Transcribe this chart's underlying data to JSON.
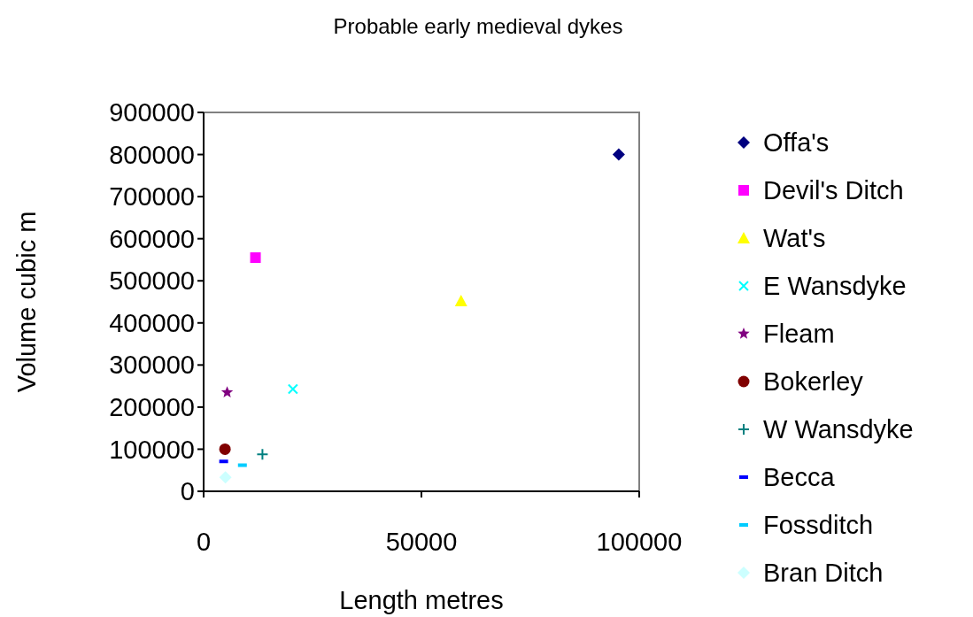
{
  "chart_data": {
    "type": "scatter",
    "title": "Probable early medieval dykes",
    "xlabel": "Length metres",
    "ylabel": "Volume cubic m",
    "xlim": [
      0,
      100000
    ],
    "xticks": [
      0,
      50000,
      100000
    ],
    "ylim": [
      0,
      900000
    ],
    "yticks": [
      0,
      100000,
      200000,
      300000,
      400000,
      500000,
      600000,
      700000,
      800000,
      900000
    ],
    "grid": false,
    "legend": "right",
    "series": [
      {
        "name": "Offa's",
        "color": "#000080",
        "marker": "diamond",
        "x": [
          95300
        ],
        "values": [
          800000
        ]
      },
      {
        "name": "Devil's Ditch",
        "color": "#ff00ff",
        "marker": "square",
        "x": [
          11900
        ],
        "values": [
          555000
        ]
      },
      {
        "name": "Wat's",
        "color": "#ffff00",
        "marker": "triangle",
        "x": [
          59100
        ],
        "values": [
          452000
        ]
      },
      {
        "name": "E Wansdyke",
        "color": "#00ffff",
        "marker": "cross",
        "x": [
          20500
        ],
        "values": [
          243000
        ]
      },
      {
        "name": "Fleam",
        "color": "#800080",
        "marker": "star",
        "x": [
          5400
        ],
        "values": [
          235000
        ]
      },
      {
        "name": "Bokerley",
        "color": "#800000",
        "marker": "circle",
        "x": [
          4900
        ],
        "values": [
          100000
        ]
      },
      {
        "name": "W Wansdyke",
        "color": "#008080",
        "marker": "plus",
        "x": [
          13500
        ],
        "values": [
          88000
        ]
      },
      {
        "name": "Becca",
        "color": "#0000ff",
        "x": [
          4600
        ],
        "values": [
          71000
        ]
      },
      {
        "name": "Fossditch",
        "color": "#00ccff",
        "x": [
          8900
        ],
        "values": [
          62000
        ]
      },
      {
        "name": "Bran Ditch",
        "color": "#ccffff",
        "marker": "diamond",
        "x": [
          5000
        ],
        "values": [
          33000
        ]
      }
    ]
  }
}
